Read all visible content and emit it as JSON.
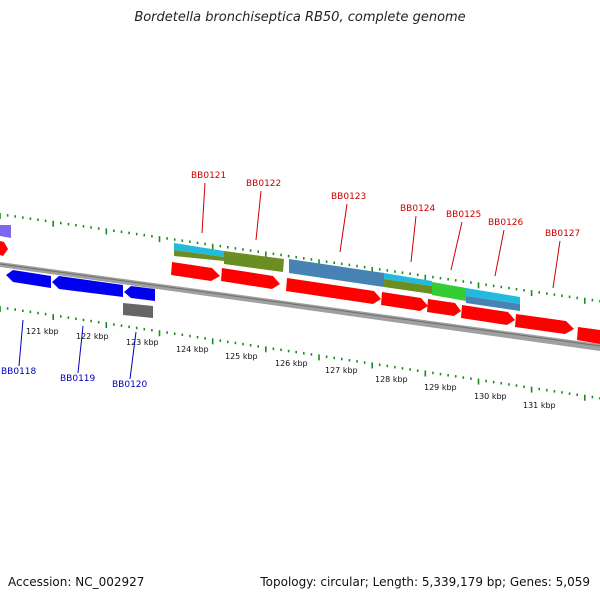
{
  "title": "Bordetella bronchiseptica RB50, complete genome",
  "footer": {
    "accession": "Accession: NC_002927",
    "summary": "Topology: circular; Length: 5,339,179 bp; Genes: 5,059"
  },
  "colors": {
    "backbone": "#888888",
    "tick": "#1a8c1a",
    "forward_label": "#cc0000",
    "reverse_label": "#0000bb",
    "forward_gene": "#ff0000",
    "reverse_gene": "#0000ee",
    "rna_gene": "#666666",
    "cog_cyan": "#22bbdd",
    "cog_olive": "#6b8e23",
    "cog_steel": "#4682b4",
    "cog_green": "#33cc33",
    "cog_purple": "#7b68ee"
  },
  "ruler": {
    "kbp_labels": [
      "121 kbp",
      "122 kbp",
      "123 kbp",
      "124 kbp",
      "125 kbp",
      "126 kbp",
      "127 kbp",
      "128 kbp",
      "129 kbp",
      "130 kbp",
      "131 kbp"
    ]
  },
  "genes_forward": [
    {
      "id": "BB0121",
      "label": "BB0121"
    },
    {
      "id": "BB0122",
      "label": "BB0122"
    },
    {
      "id": "BB0123",
      "label": "BB0123"
    },
    {
      "id": "BB0124",
      "label": "BB0124"
    },
    {
      "id": "BB0125",
      "label": "BB0125"
    },
    {
      "id": "BB0126",
      "label": "BB0126"
    },
    {
      "id": "BB0127",
      "label": "BB0127"
    }
  ],
  "genes_reverse": [
    {
      "id": "BB0118",
      "label": "BB0118"
    },
    {
      "id": "BB0119",
      "label": "BB0119"
    },
    {
      "id": "BB0120",
      "label": "BB0120"
    }
  ]
}
